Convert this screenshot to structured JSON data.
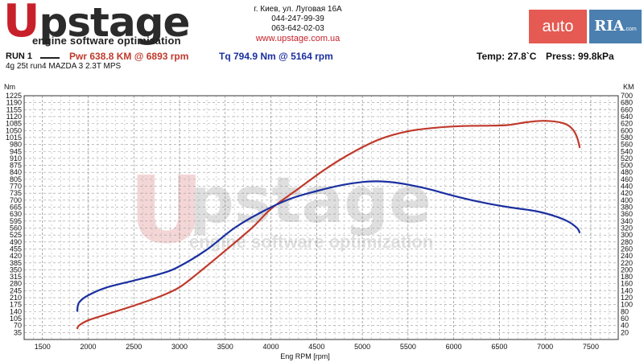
{
  "header": {
    "logo": {
      "red_letter": "U",
      "text": "pstage",
      "tagline": "engine software optimization"
    },
    "contact": {
      "address": "г. Киев, ул. Луговая 16А",
      "phone1": "044-247-99-39",
      "phone2": "063-642-02-03",
      "website": "www.upstage.com.ua"
    },
    "badge": {
      "auto": "auto",
      "ria": "RIA",
      "ria_suffix": ".com"
    }
  },
  "run": {
    "label": "RUN 1",
    "power": "Pwr  638.8 KM @ 6893 rpm",
    "torque": "Tq 794.9 Nm @ 5164 rpm",
    "temp": "Temp: 27.8`C",
    "pressure": "Press: 99.8kPa",
    "vehicle": "4g 25t run4 MAZDA 3 2.3T MPS"
  },
  "colors": {
    "power": "#c0392b",
    "torque": "#1a2fa0",
    "brand_red": "#c8202a"
  },
  "chart_data": {
    "type": "line",
    "title": "",
    "xlabel": "Eng RPM [rpm]",
    "ylabel_left": "Nm",
    "ylabel_right": "KM",
    "xlim": [
      1300,
      7800
    ],
    "x_ticks": [
      1500,
      2000,
      2500,
      3000,
      3500,
      4000,
      4500,
      5000,
      5500,
      6000,
      6500,
      7000,
      7500
    ],
    "ylim_left": [
      0,
      1225
    ],
    "ylim_right": [
      0,
      700
    ],
    "y_left_ticks": [
      35,
      70,
      105,
      140,
      175,
      210,
      245,
      280,
      315,
      350,
      385,
      420,
      455,
      490,
      525,
      560,
      595,
      630,
      665,
      700,
      735,
      770,
      805,
      840,
      875,
      910,
      945,
      980,
      1015,
      1050,
      1085,
      1120,
      1155,
      1190,
      1225
    ],
    "y_right_ticks": [
      20,
      40,
      60,
      80,
      100,
      120,
      140,
      160,
      180,
      200,
      220,
      240,
      260,
      280,
      300,
      320,
      340,
      360,
      380,
      400,
      420,
      440,
      460,
      480,
      500,
      520,
      540,
      560,
      580,
      600,
      620,
      640,
      660,
      680,
      700
    ],
    "grid": true,
    "series": [
      {
        "name": "Pwr",
        "axis": "right",
        "color": "#c0392b",
        "x": [
          1880,
          1900,
          2000,
          2200,
          2500,
          2800,
          3000,
          3200,
          3500,
          3800,
          4000,
          4300,
          4600,
          4900,
          5200,
          5500,
          5800,
          6100,
          6400,
          6600,
          6800,
          7000,
          7200,
          7300,
          7350,
          7380
        ],
        "values": [
          30,
          40,
          55,
          72,
          97,
          125,
          150,
          190,
          255,
          322,
          375,
          433,
          490,
          538,
          576,
          598,
          608,
          613,
          614,
          616,
          624,
          628,
          621,
          604,
          580,
          550
        ]
      },
      {
        "name": "Tq",
        "axis": "left",
        "color": "#1a2fa0",
        "x": [
          1880,
          1900,
          2000,
          2200,
          2500,
          2800,
          3000,
          3300,
          3600,
          3900,
          4200,
          4500,
          4800,
          5000,
          5164,
          5400,
          5700,
          6000,
          6300,
          6600,
          6900,
          7100,
          7250,
          7350,
          7380
        ],
        "values": [
          140,
          185,
          222,
          261,
          296,
          331,
          368,
          452,
          560,
          641,
          705,
          746,
          778,
          791,
          795,
          786,
          759,
          722,
          690,
          665,
          645,
          621,
          593,
          560,
          535
        ]
      }
    ]
  }
}
